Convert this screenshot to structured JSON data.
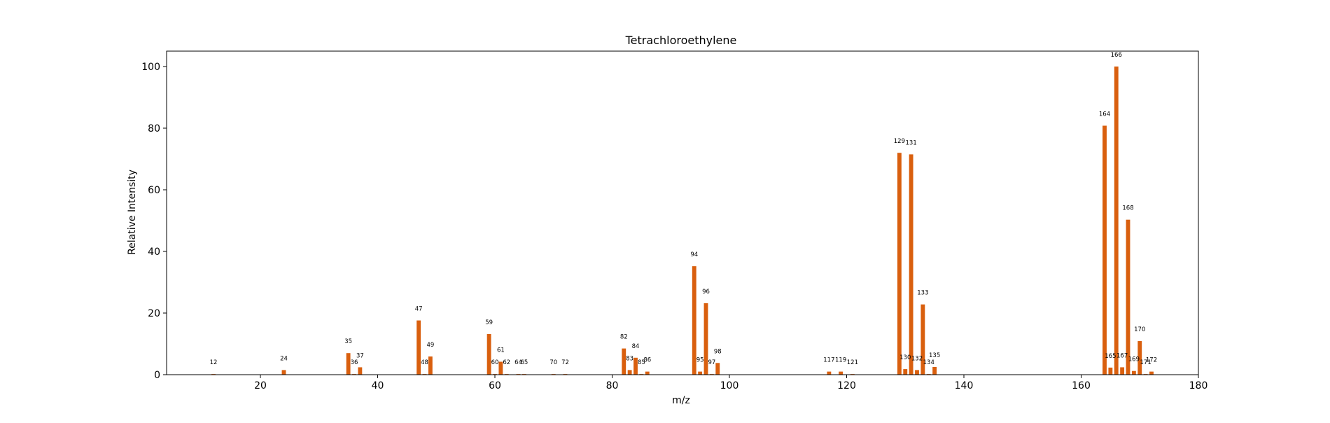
{
  "chart_data": {
    "type": "bar",
    "title": "Tetrachloroethylene",
    "xlabel": "m/z",
    "ylabel": "Relative Intensity",
    "xlim": [
      4,
      180
    ],
    "ylim": [
      0,
      105
    ],
    "xticks": [
      20,
      40,
      60,
      80,
      100,
      120,
      140,
      160,
      180
    ],
    "yticks": [
      0,
      20,
      40,
      60,
      80,
      100
    ],
    "grid": false,
    "bar_color": "#d95f0e",
    "x": [
      12,
      24,
      35,
      36,
      37,
      47,
      48,
      49,
      59,
      60,
      61,
      62,
      64,
      65,
      70,
      72,
      82,
      83,
      84,
      85,
      86,
      94,
      95,
      96,
      97,
      98,
      117,
      119,
      121,
      129,
      130,
      131,
      132,
      133,
      134,
      135,
      164,
      165,
      166,
      167,
      168,
      169,
      170,
      171,
      172
    ],
    "values": [
      0.2,
      1.5,
      7.0,
      0.2,
      2.4,
      17.6,
      0.2,
      5.9,
      13.2,
      0.2,
      4.2,
      0.2,
      0.2,
      0.2,
      0.2,
      0.2,
      8.5,
      1.5,
      5.5,
      0.2,
      1.0,
      35.2,
      1.0,
      23.2,
      0.2,
      3.8,
      1.0,
      1.0,
      0.2,
      72.0,
      1.8,
      71.5,
      1.5,
      22.8,
      0.2,
      2.5,
      80.8,
      2.3,
      100.0,
      2.4,
      50.3,
      1.2,
      10.9,
      0.2,
      1.0
    ],
    "labels": [
      "12",
      "24",
      "35",
      "36",
      "37",
      "47",
      "48",
      "49",
      "59",
      "60",
      "61",
      "62",
      "64",
      "65",
      "70",
      "72",
      "82",
      "83",
      "84",
      "85",
      "86",
      "94",
      "95",
      "96",
      "97",
      "98",
      "117",
      "119",
      "121",
      "129",
      "130",
      "131",
      "132",
      "133",
      "134",
      "135",
      "164",
      "165",
      "166",
      "167",
      "168",
      "169",
      "170",
      "171",
      "172"
    ]
  }
}
